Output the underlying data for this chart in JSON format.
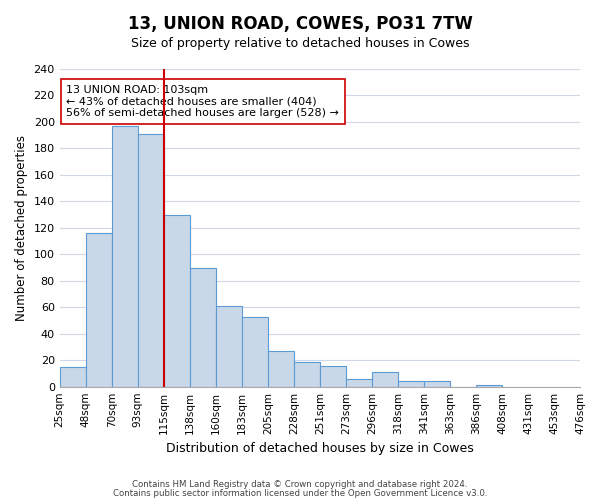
{
  "title": "13, UNION ROAD, COWES, PO31 7TW",
  "subtitle": "Size of property relative to detached houses in Cowes",
  "xlabel": "Distribution of detached houses by size in Cowes",
  "ylabel": "Number of detached properties",
  "bar_values": [
    15,
    116,
    197,
    191,
    130,
    90,
    61,
    53,
    27,
    19,
    16,
    6,
    11,
    4,
    4,
    0,
    1
  ],
  "bin_labels": [
    "25sqm",
    "48sqm",
    "70sqm",
    "93sqm",
    "115sqm",
    "138sqm",
    "160sqm",
    "183sqm",
    "205sqm",
    "228sqm",
    "251sqm",
    "273sqm",
    "296sqm",
    "318sqm",
    "341sqm",
    "363sqm",
    "386sqm",
    "408sqm",
    "431sqm",
    "453sqm",
    "476sqm"
  ],
  "bar_color": "#c8d8e8",
  "bar_edge_color": "#5b9bd5",
  "property_line_x": 4.0,
  "property_line_color": "#cc0000",
  "annotation_text": "13 UNION ROAD: 103sqm\n← 43% of detached houses are smaller (404)\n56% of semi-detached houses are larger (528) →",
  "annotation_box_edge_color": "#cc0000",
  "ylim": [
    0,
    240
  ],
  "yticks": [
    0,
    20,
    40,
    60,
    80,
    100,
    120,
    140,
    160,
    180,
    200,
    220,
    240
  ],
  "footer_line1": "Contains HM Land Registry data © Crown copyright and database right 2024.",
  "footer_line2": "Contains public sector information licensed under the Open Government Licence v3.0.",
  "background_color": "#ffffff",
  "grid_color": "#d0d8e8"
}
